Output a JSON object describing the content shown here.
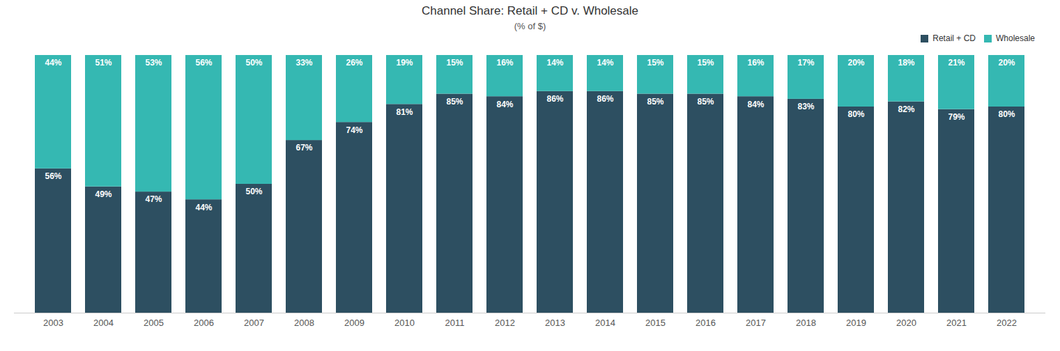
{
  "chart_data": {
    "type": "bar",
    "title": "Channel Share: Retail + CD v. Wholesale",
    "subtitle": "(% of $)",
    "categories": [
      "2003",
      "2004",
      "2005",
      "2006",
      "2007",
      "2008",
      "2009",
      "2010",
      "2011",
      "2012",
      "2013",
      "2014",
      "2015",
      "2016",
      "2017",
      "2018",
      "2019",
      "2020",
      "2021",
      "2022"
    ],
    "series": [
      {
        "name": "Retail + CD",
        "color": "#2d4f61",
        "values": [
          56,
          49,
          47,
          44,
          50,
          67,
          74,
          81,
          85,
          84,
          86,
          86,
          85,
          85,
          84,
          83,
          80,
          82,
          79,
          80
        ],
        "value_labels": [
          "56%",
          "49%",
          "47%",
          "44%",
          "50%",
          "67%",
          "74%",
          "81%",
          "85%",
          "84%",
          "86%",
          "86%",
          "85%",
          "85%",
          "84%",
          "83%",
          "80%",
          "82%",
          "79%",
          "80%"
        ]
      },
      {
        "name": "Wholesale",
        "color": "#35b8b2",
        "values": [
          44,
          51,
          53,
          56,
          50,
          33,
          26,
          19,
          15,
          16,
          14,
          14,
          15,
          15,
          16,
          17,
          20,
          18,
          21,
          20
        ],
        "value_labels": [
          "44%",
          "51%",
          "53%",
          "56%",
          "50%",
          "33%",
          "26%",
          "19%",
          "15%",
          "16%",
          "14%",
          "14%",
          "15%",
          "15%",
          "16%",
          "17%",
          "20%",
          "18%",
          "21%",
          "20%"
        ]
      }
    ],
    "stacked": true,
    "ylim": [
      0,
      100
    ],
    "grid": false,
    "data_labels": true,
    "tick_labels": "x",
    "legend": "top-right"
  }
}
